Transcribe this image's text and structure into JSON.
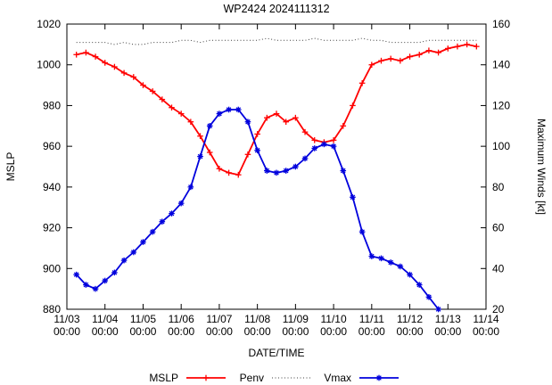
{
  "title": "WP2424 2024111312",
  "axes": {
    "x_label": "DATE/TIME",
    "y_left_label": "MSLP",
    "y_right_label": "Maximum Winds [kt]",
    "x_tick_dates": [
      "11/03",
      "11/04",
      "11/05",
      "11/06",
      "11/07",
      "11/08",
      "11/09",
      "11/10",
      "11/11",
      "11/12",
      "11/13",
      "11/14"
    ],
    "x_tick_time": "00:00",
    "y_left_ticks": [
      880,
      900,
      920,
      940,
      960,
      980,
      1000,
      1020
    ],
    "y_right_ticks": [
      20,
      40,
      60,
      80,
      100,
      120,
      140,
      160
    ]
  },
  "colors": {
    "mslp": "#ff0000",
    "penv": "#404040",
    "vmax": "#0000dd",
    "axis": "#000000",
    "background": "#ffffff"
  },
  "chart_data": {
    "type": "line",
    "title": "WP2424 2024111312",
    "xlabel": "DATE/TIME",
    "ylabel_left": "MSLP",
    "ylabel_right": "Maximum Winds [kt]",
    "x_axis_start": "11/03 00:00",
    "x_axis_end": "11/14 00:00",
    "x_range_hours": [
      0,
      264
    ],
    "y_left_range": [
      880,
      1020
    ],
    "y_right_range": [
      20,
      160
    ],
    "grid": false,
    "legend_position": "bottom-center",
    "x_hours": [
      6,
      12,
      18,
      24,
      30,
      36,
      42,
      48,
      54,
      60,
      66,
      72,
      78,
      84,
      90,
      96,
      102,
      108,
      114,
      120,
      126,
      132,
      138,
      144,
      150,
      156,
      162,
      168,
      174,
      180,
      186,
      192,
      198,
      204,
      210,
      216,
      222,
      228,
      234,
      240,
      246,
      252,
      258
    ],
    "series": [
      {
        "name": "MSLP",
        "axis": "left",
        "units": "hPa",
        "color": "#ff0000",
        "marker": "plus",
        "style": "solid",
        "values": [
          1005,
          1006,
          1004,
          1001,
          999,
          996,
          994,
          990,
          987,
          983,
          979,
          976,
          972,
          965,
          957,
          949,
          947,
          946,
          956,
          966,
          974,
          976,
          972,
          974,
          967,
          963,
          962,
          963,
          970,
          980,
          991,
          1000,
          1002,
          1003,
          1002,
          1004,
          1005,
          1007,
          1006,
          1008,
          1009,
          1010,
          1009
        ]
      },
      {
        "name": "Penv",
        "axis": "left",
        "units": "hPa",
        "color": "#404040",
        "marker": "none",
        "style": "dotted",
        "values": [
          1011,
          1011,
          1011,
          1011,
          1010,
          1011,
          1010,
          1010,
          1011,
          1011,
          1011,
          1012,
          1012,
          1011,
          1012,
          1012,
          1012,
          1012,
          1012,
          1012,
          1013,
          1012,
          1012,
          1012,
          1012,
          1013,
          1012,
          1012,
          1012,
          1012,
          1013,
          1012,
          1012,
          1011,
          1011,
          1011,
          1011,
          1012,
          1012,
          1012,
          1012,
          1012,
          1012
        ]
      },
      {
        "name": "Vmax",
        "axis": "right",
        "units": "kt",
        "color": "#0000dd",
        "marker": "asterisk",
        "style": "solid",
        "values": [
          37,
          32,
          30,
          34,
          38,
          44,
          48,
          53,
          58,
          63,
          67,
          72,
          80,
          95,
          110,
          116,
          118,
          118,
          112,
          98,
          88,
          87,
          88,
          90,
          94,
          99,
          101,
          100,
          88,
          75,
          58,
          46,
          45,
          43,
          41,
          37,
          32,
          26,
          20,
          null,
          null,
          null,
          null
        ]
      }
    ]
  }
}
